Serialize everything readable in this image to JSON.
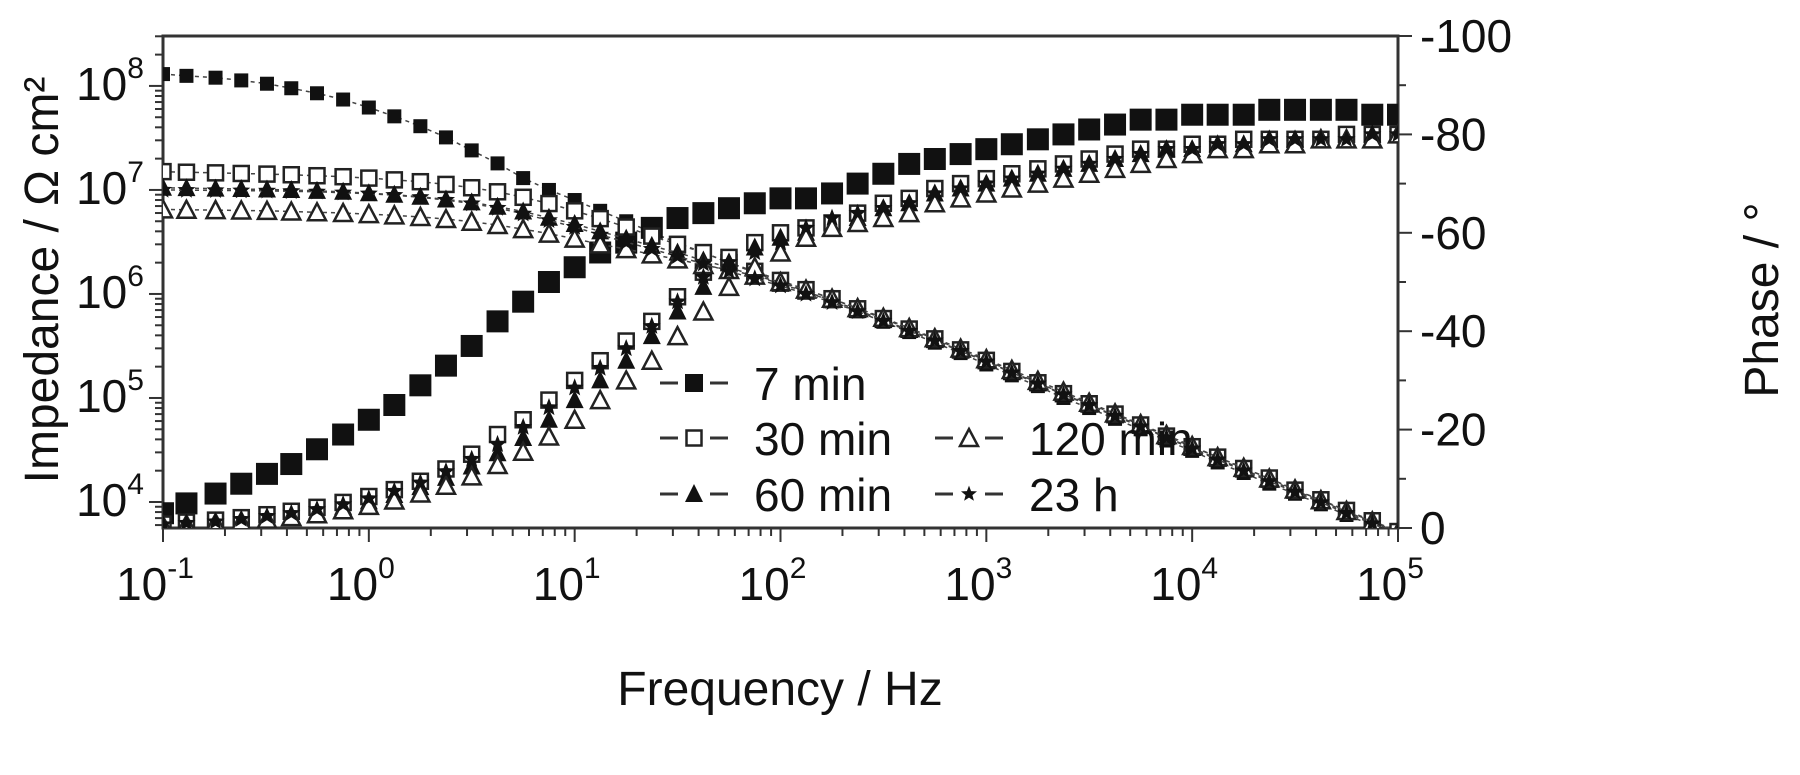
{
  "chart_data": {
    "type": "scatter",
    "title": "",
    "xlabel": "Frequency / Hz",
    "ylabel": "Impedance / Ω cm²",
    "ylabel_right": "Phase / °",
    "xscale": "log",
    "yscale": "log",
    "xlim": [
      0.1,
      100000
    ],
    "ylim": [
      5600,
      300000000
    ],
    "ylim_right": [
      0,
      -100
    ],
    "x_ticks": [
      "10^-1",
      "10^0",
      "10^1",
      "10^2",
      "10^3",
      "10^4",
      "10^5"
    ],
    "y_ticks": [
      "10^4",
      "10^5",
      "10^6",
      "10^7",
      "10^8"
    ],
    "y_right_ticks": [
      "0",
      "-20",
      "-40",
      "-60",
      "-80",
      "-100"
    ],
    "grid": false,
    "legend_position": "lower center inside",
    "legend": [
      "7 min",
      "30 min",
      "60 min",
      "120 min",
      "23 h"
    ],
    "x": [
      0.1,
      0.13,
      0.18,
      0.24,
      0.32,
      0.42,
      0.56,
      0.75,
      1.0,
      1.33,
      1.78,
      2.37,
      3.16,
      4.22,
      5.62,
      7.5,
      10,
      13.3,
      17.8,
      23.7,
      31.6,
      42.2,
      56.2,
      75,
      100,
      133,
      178,
      237,
      316,
      422,
      562,
      750,
      1000,
      1330,
      1780,
      2370,
      3160,
      4220,
      5620,
      7500,
      10000,
      13300,
      17800,
      23700,
      31600,
      42200,
      56200,
      75000,
      100000
    ],
    "series": [
      {
        "name": "7 min",
        "marker": "filled-square",
        "quantity": "impedance",
        "values": [
          130000000,
          125000000,
          120000000,
          113000000,
          105000000,
          95000000,
          85000000,
          74000000,
          62000000,
          51000000,
          41000000,
          32000000,
          24000000,
          18000000,
          13000000,
          10000000,
          8000000,
          6300000,
          5000000,
          3900000,
          3100000,
          2500000,
          2000000,
          1600000,
          1300000,
          1050000,
          850000,
          680000,
          540000,
          430000,
          340000,
          270000,
          210000,
          165000,
          130000,
          100000,
          80000,
          63000,
          50000,
          39000,
          31000,
          24000,
          19000,
          15000,
          12000,
          9500,
          7500,
          6000,
          4800
        ]
      },
      {
        "name": "7 min",
        "marker": "filled-square",
        "quantity": "phase",
        "values": [
          -3,
          -5,
          -7,
          -9,
          -11,
          -13,
          -16,
          -19,
          -22,
          -25,
          -29,
          -33,
          -37,
          -42,
          -46,
          -50,
          -53,
          -56,
          -58,
          -61,
          -63,
          -64,
          -65,
          -66,
          -67,
          -67,
          -68,
          -70,
          -72,
          -74,
          -75,
          -76,
          -77,
          -78,
          -79,
          -80,
          -81,
          -82,
          -83,
          -83,
          -84,
          -84,
          -84,
          -85,
          -85,
          -85,
          -85,
          -84,
          -84
        ]
      },
      {
        "name": "30 min",
        "marker": "open-square",
        "quantity": "impedance",
        "values": [
          15000000,
          14800000,
          14600000,
          14400000,
          14200000,
          14000000,
          13700000,
          13400000,
          13000000,
          12500000,
          12000000,
          11300000,
          10500000,
          9600000,
          8500000,
          7400000,
          6300000,
          5300000,
          4400000,
          3600000,
          3000000,
          2500000,
          2000000,
          1650000,
          1350000,
          1100000,
          900000,
          720000,
          580000,
          460000,
          370000,
          290000,
          230000,
          180000,
          140000,
          110000,
          88000,
          70000,
          55000,
          43000,
          34000,
          27000,
          21000,
          17000,
          13000,
          10500,
          8300,
          6600,
          5200
        ]
      },
      {
        "name": "30 min",
        "marker": "open-square",
        "quantity": "phase",
        "values": [
          -0.8,
          -1.2,
          -1.6,
          -2.1,
          -2.7,
          -3.4,
          -4.2,
          -5.2,
          -6.4,
          -7.8,
          -9.5,
          -12,
          -15,
          -19,
          -22,
          -26,
          -30,
          -34,
          -38,
          -42,
          -47,
          -52,
          -55,
          -58,
          -60,
          -61,
          -62,
          -64,
          -66,
          -67,
          -69,
          -70,
          -71,
          -72,
          -73,
          -74,
          -75,
          -76,
          -77,
          -77,
          -78,
          -78,
          -79,
          -79,
          -79,
          -79,
          -80,
          -80,
          -80
        ]
      },
      {
        "name": "60 min",
        "marker": "filled-triangle",
        "quantity": "impedance",
        "values": [
          10500000,
          10400000,
          10300000,
          10200000,
          10100000,
          10000000,
          9800000,
          9600000,
          9300000,
          9000000,
          8600000,
          8100000,
          7600000,
          6900000,
          6200000,
          5400000,
          4700000,
          4000000,
          3400000,
          2900000,
          2500000,
          2100000,
          1800000,
          1500000,
          1250000,
          1050000,
          870000,
          700000,
          560000,
          450000,
          360000,
          285000,
          225000,
          177000,
          139000,
          109000,
          86000,
          68000,
          54000,
          42000,
          33000,
          26000,
          20500,
          16300,
          12900,
          10200,
          8100,
          6400,
          5100
        ]
      },
      {
        "name": "60 min",
        "marker": "filled-triangle",
        "quantity": "phase",
        "values": [
          -0.6,
          -0.9,
          -1.2,
          -1.6,
          -2.1,
          -2.7,
          -3.4,
          -4.3,
          -5.4,
          -6.7,
          -8.3,
          -10.2,
          -12.5,
          -15.2,
          -18.3,
          -22,
          -26,
          -30,
          -34,
          -39,
          -44,
          -49,
          -54,
          -57,
          -59,
          -60,
          -61,
          -63,
          -65,
          -66,
          -68,
          -69,
          -70,
          -71,
          -72,
          -73,
          -74,
          -75,
          -76,
          -77,
          -77,
          -78,
          -78,
          -79,
          -79,
          -79,
          -79,
          -80,
          -80
        ]
      },
      {
        "name": "120 min",
        "marker": "open-triangle",
        "quantity": "impedance",
        "values": [
          6500000,
          6450000,
          6400000,
          6350000,
          6300000,
          6200000,
          6100000,
          6000000,
          5850000,
          5700000,
          5500000,
          5250000,
          4950000,
          4600000,
          4200000,
          3800000,
          3400000,
          3000000,
          2700000,
          2400000,
          2150000,
          1900000,
          1700000,
          1500000,
          1300000,
          1100000,
          900000,
          730000,
          590000,
          470000,
          375000,
          298000,
          236000,
          186000,
          146000,
          115000,
          90000,
          71000,
          56000,
          44000,
          34500,
          27000,
          21300,
          16800,
          13200,
          10400,
          8200,
          6500,
          5100
        ]
      },
      {
        "name": "120 min",
        "marker": "open-triangle",
        "quantity": "phase",
        "values": [
          -0.5,
          -0.7,
          -1.0,
          -1.3,
          -1.7,
          -2.2,
          -2.8,
          -3.6,
          -4.5,
          -5.6,
          -7,
          -8.6,
          -10.5,
          -12.8,
          -15.5,
          -18.6,
          -22,
          -26,
          -30,
          -34,
          -39,
          -44,
          -49,
          -53,
          -56,
          -59,
          -61,
          -62,
          -63,
          -64,
          -66,
          -67,
          -68,
          -69,
          -70,
          -71,
          -72,
          -73,
          -74,
          -75,
          -76,
          -77,
          -77,
          -78,
          -78,
          -79,
          -79,
          -79,
          -80
        ]
      },
      {
        "name": "23 h",
        "marker": "star",
        "quantity": "impedance",
        "values": [
          10000000,
          9950000,
          9900000,
          9850000,
          9800000,
          9700000,
          9600000,
          9400000,
          9200000,
          8900000,
          8500000,
          8000000,
          7400000,
          6700000,
          5900000,
          5100000,
          4400000,
          3700000,
          3150000,
          2700000,
          2300000,
          1950000,
          1650000,
          1400000,
          1200000,
          1000000,
          830000,
          680000,
          550000,
          440000,
          355000,
          282000,
          223000,
          175000,
          137000,
          108000,
          85000,
          67000,
          53000,
          41500,
          32500,
          25500,
          20000,
          15800,
          12500,
          9900,
          7800,
          6200,
          4900
        ]
      },
      {
        "name": "23 h",
        "marker": "star",
        "quantity": "phase",
        "values": [
          -0.7,
          -1.0,
          -1.3,
          -1.8,
          -2.4,
          -3.0,
          -3.8,
          -4.8,
          -6.0,
          -7.5,
          -9.2,
          -11.5,
          -14,
          -17,
          -20.5,
          -24.5,
          -28.5,
          -32.5,
          -36.5,
          -41,
          -46,
          -51,
          -54,
          -56,
          -58,
          -61,
          -63,
          -64,
          -65,
          -66,
          -68,
          -69,
          -70,
          -71,
          -72,
          -73,
          -74,
          -75,
          -76,
          -77,
          -77,
          -78,
          -78,
          -79,
          -79,
          -79,
          -79,
          -80,
          -80
        ]
      }
    ]
  }
}
